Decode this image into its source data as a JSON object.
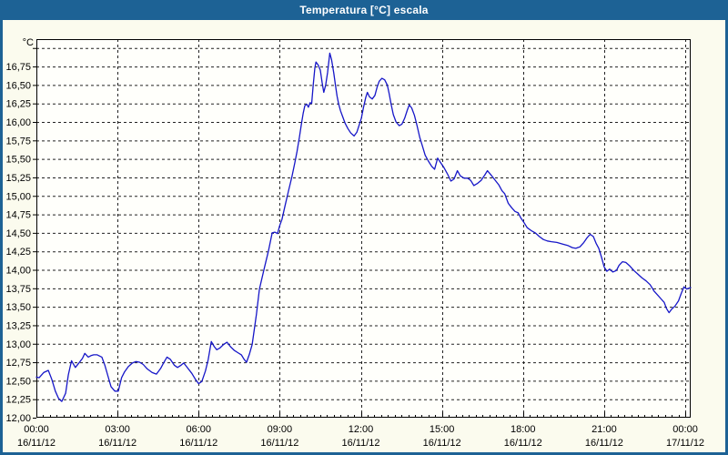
{
  "window": {
    "title": "Temperatura [°C] escala"
  },
  "colors": {
    "titlebar": "#1d6295",
    "frame": "#1d6295",
    "title_text": "#ffffff",
    "chart_bg": "#fbfbee",
    "plot_bg": "#fffffb",
    "line": "#1616c8",
    "grid": "#222222",
    "axis": "#000000",
    "text": "#000000"
  },
  "chart_data": {
    "type": "line",
    "title": "Temperatura [°C] escala",
    "legend": "none",
    "grid": "dashed",
    "y_axis": {
      "unit": "°C",
      "min": 12.0,
      "max": 17.12,
      "gridline_step": 0.25,
      "gridline_top": 17.0,
      "labels": [
        "12,00",
        "12,25",
        "12,50",
        "12,75",
        "13,00",
        "13,25",
        "13,50",
        "13,75",
        "14,00",
        "14,25",
        "14,50",
        "14,75",
        "15,00",
        "15,25",
        "15,50",
        "15,75",
        "16,00",
        "16,25",
        "16,50",
        "16,75"
      ]
    },
    "x_axis": {
      "range_hours": [
        0,
        24.2
      ],
      "major_step_hours": 3,
      "minor_tick_step_hours": 0.25,
      "ticks": [
        {
          "hours": 0,
          "time": "00:00",
          "date": "16/11/12"
        },
        {
          "hours": 3,
          "time": "03:00",
          "date": "16/11/12"
        },
        {
          "hours": 6,
          "time": "06:00",
          "date": "16/11/12"
        },
        {
          "hours": 9,
          "time": "09:00",
          "date": "16/11/12"
        },
        {
          "hours": 12,
          "time": "12:00",
          "date": "16/11/12"
        },
        {
          "hours": 15,
          "time": "15:00",
          "date": "16/11/12"
        },
        {
          "hours": 18,
          "time": "18:00",
          "date": "16/11/12"
        },
        {
          "hours": 21,
          "time": "21:00",
          "date": "16/11/12"
        },
        {
          "hours": 24,
          "time": "00:00",
          "date": "17/11/12"
        }
      ]
    },
    "series": [
      {
        "name": "Temperatura",
        "color": "#1616c8",
        "points": [
          [
            0,
            12.55
          ],
          [
            0.1,
            12.54
          ],
          [
            0.27,
            12.61
          ],
          [
            0.44,
            12.64
          ],
          [
            0.57,
            12.52
          ],
          [
            0.7,
            12.36
          ],
          [
            0.82,
            12.26
          ],
          [
            0.94,
            12.22
          ],
          [
            1.08,
            12.33
          ],
          [
            1.18,
            12.58
          ],
          [
            1.3,
            12.77
          ],
          [
            1.44,
            12.68
          ],
          [
            1.55,
            12.73
          ],
          [
            1.7,
            12.8
          ],
          [
            1.79,
            12.87
          ],
          [
            1.92,
            12.82
          ],
          [
            2.02,
            12.84
          ],
          [
            2.12,
            12.85
          ],
          [
            2.25,
            12.85
          ],
          [
            2.42,
            12.82
          ],
          [
            2.53,
            12.71
          ],
          [
            2.65,
            12.56
          ],
          [
            2.76,
            12.42
          ],
          [
            2.9,
            12.36
          ],
          [
            3.03,
            12.36
          ],
          [
            3.15,
            12.54
          ],
          [
            3.26,
            12.62
          ],
          [
            3.4,
            12.69
          ],
          [
            3.55,
            12.74
          ],
          [
            3.68,
            12.76
          ],
          [
            3.82,
            12.75
          ],
          [
            3.95,
            12.72
          ],
          [
            4.1,
            12.66
          ],
          [
            4.28,
            12.61
          ],
          [
            4.44,
            12.59
          ],
          [
            4.6,
            12.67
          ],
          [
            4.72,
            12.75
          ],
          [
            4.83,
            12.82
          ],
          [
            4.95,
            12.79
          ],
          [
            5.1,
            12.71
          ],
          [
            5.22,
            12.68
          ],
          [
            5.35,
            12.71
          ],
          [
            5.45,
            12.74
          ],
          [
            5.6,
            12.67
          ],
          [
            5.75,
            12.6
          ],
          [
            5.88,
            12.52
          ],
          [
            6.0,
            12.46
          ],
          [
            6.12,
            12.49
          ],
          [
            6.25,
            12.63
          ],
          [
            6.35,
            12.78
          ],
          [
            6.47,
            13.03
          ],
          [
            6.58,
            12.96
          ],
          [
            6.67,
            12.92
          ],
          [
            6.78,
            12.94
          ],
          [
            6.92,
            12.99
          ],
          [
            7.05,
            13.02
          ],
          [
            7.18,
            12.96
          ],
          [
            7.32,
            12.91
          ],
          [
            7.45,
            12.88
          ],
          [
            7.58,
            12.85
          ],
          [
            7.68,
            12.79
          ],
          [
            7.77,
            12.75
          ],
          [
            7.88,
            12.86
          ],
          [
            7.98,
            12.99
          ],
          [
            8.08,
            13.25
          ],
          [
            8.14,
            13.4
          ],
          [
            8.25,
            13.74
          ],
          [
            8.42,
            14.01
          ],
          [
            8.58,
            14.25
          ],
          [
            8.72,
            14.5
          ],
          [
            8.82,
            14.51
          ],
          [
            8.92,
            14.49
          ],
          [
            9.0,
            14.6
          ],
          [
            9.08,
            14.68
          ],
          [
            9.2,
            14.87
          ],
          [
            9.32,
            15.06
          ],
          [
            9.45,
            15.26
          ],
          [
            9.56,
            15.45
          ],
          [
            9.64,
            15.6
          ],
          [
            9.73,
            15.8
          ],
          [
            9.8,
            15.97
          ],
          [
            9.87,
            16.12
          ],
          [
            9.93,
            16.22
          ],
          [
            10.0,
            16.24
          ],
          [
            10.06,
            16.2
          ],
          [
            10.12,
            16.26
          ],
          [
            10.18,
            16.25
          ],
          [
            10.24,
            16.5
          ],
          [
            10.3,
            16.73
          ],
          [
            10.34,
            16.81
          ],
          [
            10.42,
            16.77
          ],
          [
            10.5,
            16.7
          ],
          [
            10.57,
            16.53
          ],
          [
            10.63,
            16.4
          ],
          [
            10.7,
            16.5
          ],
          [
            10.77,
            16.67
          ],
          [
            10.85,
            16.93
          ],
          [
            10.92,
            16.84
          ],
          [
            11.0,
            16.66
          ],
          [
            11.06,
            16.5
          ],
          [
            11.12,
            16.35
          ],
          [
            11.18,
            16.24
          ],
          [
            11.25,
            16.15
          ],
          [
            11.32,
            16.08
          ],
          [
            11.42,
            15.98
          ],
          [
            11.52,
            15.91
          ],
          [
            11.63,
            15.85
          ],
          [
            11.75,
            15.81
          ],
          [
            11.85,
            15.86
          ],
          [
            11.95,
            15.97
          ],
          [
            12.02,
            16.05
          ],
          [
            12.1,
            16.2
          ],
          [
            12.18,
            16.33
          ],
          [
            12.24,
            16.4
          ],
          [
            12.32,
            16.34
          ],
          [
            12.42,
            16.31
          ],
          [
            12.52,
            16.36
          ],
          [
            12.6,
            16.47
          ],
          [
            12.68,
            16.55
          ],
          [
            12.78,
            16.59
          ],
          [
            12.88,
            16.57
          ],
          [
            12.98,
            16.5
          ],
          [
            13.05,
            16.38
          ],
          [
            13.12,
            16.24
          ],
          [
            13.2,
            16.1
          ],
          [
            13.3,
            16.0
          ],
          [
            13.42,
            15.95
          ],
          [
            13.52,
            15.97
          ],
          [
            13.62,
            16.05
          ],
          [
            13.72,
            16.16
          ],
          [
            13.79,
            16.23
          ],
          [
            13.88,
            16.19
          ],
          [
            13.98,
            16.09
          ],
          [
            14.08,
            15.95
          ],
          [
            14.18,
            15.79
          ],
          [
            14.28,
            15.67
          ],
          [
            14.38,
            15.55
          ],
          [
            14.5,
            15.47
          ],
          [
            14.62,
            15.4
          ],
          [
            14.73,
            15.36
          ],
          [
            14.84,
            15.51
          ],
          [
            14.95,
            15.45
          ],
          [
            15.08,
            15.38
          ],
          [
            15.2,
            15.3
          ],
          [
            15.33,
            15.2
          ],
          [
            15.45,
            15.23
          ],
          [
            15.57,
            15.34
          ],
          [
            15.68,
            15.27
          ],
          [
            15.82,
            15.24
          ],
          [
            15.95,
            15.24
          ],
          [
            16.06,
            15.21
          ],
          [
            16.18,
            15.14
          ],
          [
            16.32,
            15.17
          ],
          [
            16.45,
            15.21
          ],
          [
            16.58,
            15.28
          ],
          [
            16.68,
            15.34
          ],
          [
            16.8,
            15.29
          ],
          [
            16.95,
            15.22
          ],
          [
            17.1,
            15.15
          ],
          [
            17.22,
            15.07
          ],
          [
            17.32,
            15.03
          ],
          [
            17.45,
            14.9
          ],
          [
            17.58,
            14.84
          ],
          [
            17.7,
            14.79
          ],
          [
            17.82,
            14.77
          ],
          [
            17.92,
            14.7
          ],
          [
            17.98,
            14.67
          ],
          [
            18.05,
            14.63
          ],
          [
            18.15,
            14.57
          ],
          [
            18.3,
            14.53
          ],
          [
            18.45,
            14.5
          ],
          [
            18.6,
            14.45
          ],
          [
            18.75,
            14.41
          ],
          [
            18.9,
            14.39
          ],
          [
            19.05,
            14.38
          ],
          [
            19.25,
            14.37
          ],
          [
            19.45,
            14.35
          ],
          [
            19.65,
            14.33
          ],
          [
            19.82,
            14.3
          ],
          [
            19.95,
            14.29
          ],
          [
            20.1,
            14.31
          ],
          [
            20.25,
            14.37
          ],
          [
            20.38,
            14.44
          ],
          [
            20.48,
            14.48
          ],
          [
            20.6,
            14.45
          ],
          [
            20.7,
            14.36
          ],
          [
            20.8,
            14.29
          ],
          [
            20.9,
            14.17
          ],
          [
            21.0,
            14.04
          ],
          [
            21.1,
            13.98
          ],
          [
            21.2,
            14.01
          ],
          [
            21.32,
            13.97
          ],
          [
            21.45,
            13.99
          ],
          [
            21.55,
            14.06
          ],
          [
            21.68,
            14.11
          ],
          [
            21.8,
            14.1
          ],
          [
            21.95,
            14.05
          ],
          [
            22.1,
            13.99
          ],
          [
            22.25,
            13.94
          ],
          [
            22.4,
            13.89
          ],
          [
            22.55,
            13.85
          ],
          [
            22.7,
            13.8
          ],
          [
            22.85,
            13.71
          ],
          [
            23.0,
            13.65
          ],
          [
            23.12,
            13.6
          ],
          [
            23.22,
            13.56
          ],
          [
            23.3,
            13.48
          ],
          [
            23.4,
            13.42
          ],
          [
            23.5,
            13.47
          ],
          [
            23.62,
            13.51
          ],
          [
            23.75,
            13.58
          ],
          [
            23.85,
            13.68
          ],
          [
            23.95,
            13.77
          ],
          [
            24.05,
            13.74
          ],
          [
            24.2,
            13.76
          ]
        ]
      }
    ]
  }
}
